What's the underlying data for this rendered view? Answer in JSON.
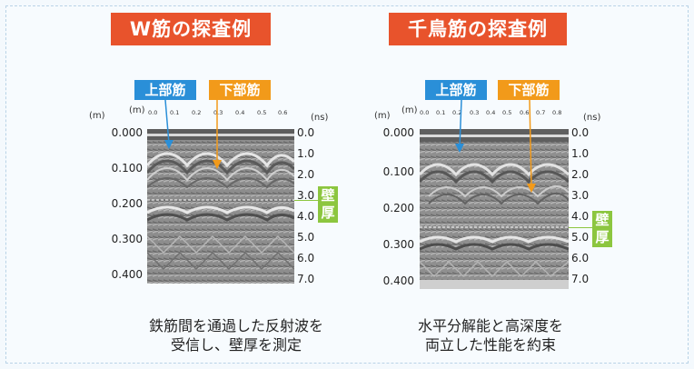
{
  "left": {
    "title": "W筋の探査例",
    "upper_label": "上部筋",
    "lower_label": "下部筋",
    "x_unit": "(m)",
    "y_unit": "(m)",
    "ns_unit": "(ns)",
    "x_ticks": [
      "0.0",
      "0.1",
      "0.2",
      "0.3",
      "0.4",
      "0.5",
      "0.6"
    ],
    "depth_labels": [
      "0.000",
      "0.100",
      "0.200",
      "0.300",
      "0.400"
    ],
    "ns_labels": [
      "0.0",
      "1.0",
      "2.0",
      "3.0",
      "4.0",
      "5.0",
      "6.0",
      "7.0"
    ],
    "wall_label": [
      "壁",
      "厚"
    ],
    "caption_line1": "鉄筋間を通過した反射波を",
    "caption_line2": "受信し、壁厚を測定"
  },
  "right": {
    "title": "千鳥筋の探査例",
    "upper_label": "上部筋",
    "lower_label": "下部筋",
    "x_unit": "(m)",
    "y_unit": "(m)",
    "ns_unit": "(ns)",
    "x_ticks": [
      "0.0",
      "0.1",
      "0.2",
      "0.3",
      "0.4",
      "0.5",
      "0.6",
      "0.7",
      "0.8"
    ],
    "depth_labels": [
      "0.000",
      "0.100",
      "0.200",
      "0.300",
      "0.400"
    ],
    "ns_labels": [
      "0.0",
      "1.0",
      "2.0",
      "3.0",
      "4.0",
      "5.0",
      "6.0",
      "7.0"
    ],
    "wall_label": [
      "壁",
      "厚"
    ],
    "caption_line1": "水平分解能と高深度を",
    "caption_line2": "両立した性能を約束"
  },
  "colors": {
    "title_bg": "#e8532c",
    "upper_tag": "#2a8fd8",
    "lower_tag": "#f29a1a",
    "wall_tag": "#8cc63f",
    "frame": "#b9d3e6"
  }
}
